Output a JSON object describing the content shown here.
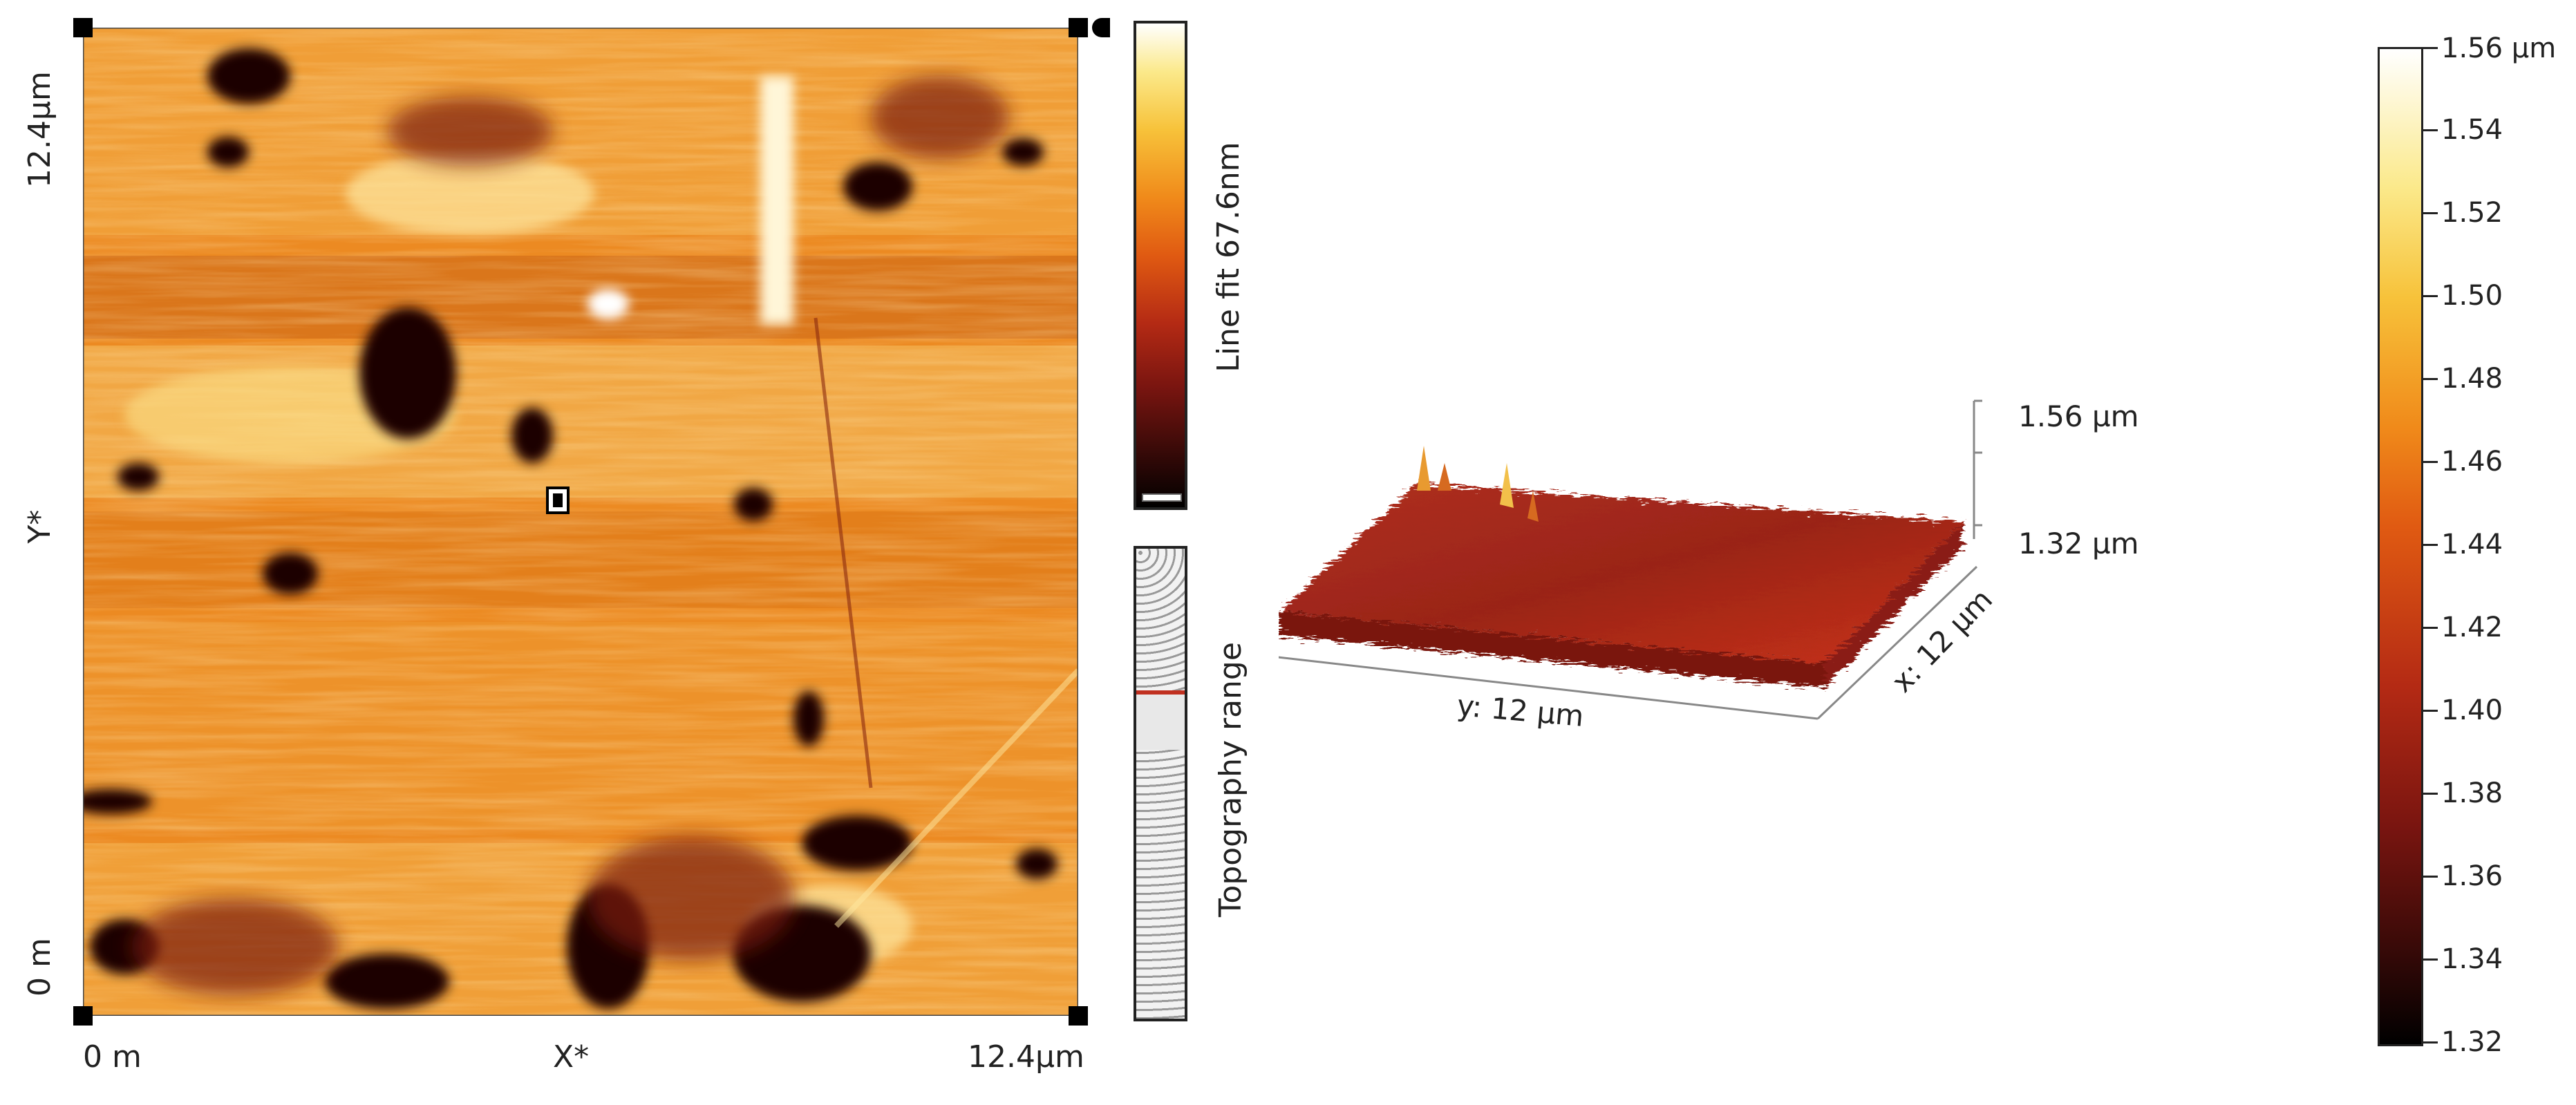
{
  "topo_map": {
    "y_max_label": "12.4µm",
    "y_mid_label": "Y*",
    "y_min_label": "0 m",
    "x_min_label": "0 m",
    "x_mid_label": "X*",
    "x_max_label": "12.4µm"
  },
  "line_fit_bar": {
    "label": "Line fit 67.6nm"
  },
  "topography_range_bar": {
    "label": "Topography range"
  },
  "view3d": {
    "z_top_label": "1.56 µm",
    "z_bottom_label": "1.32 µm",
    "y_axis_label": "y: 12 µm",
    "x_axis_label": "x: 12 µm"
  },
  "colors": {
    "colormap": [
      "#000000",
      "#3a0a08",
      "#7a1510",
      "#b42a14",
      "#e05a12",
      "#f08a1a",
      "#f7c23a",
      "#fbe98a",
      "#ffffff"
    ],
    "surface_3d": "#a8261c"
  },
  "chart_data": {
    "type": "heatmap",
    "title": "",
    "colorbar": {
      "unit": "µm",
      "min": 1.32,
      "max": 1.56,
      "max_label": "1.56 µm",
      "ticks": [
        "1.54",
        "1.52",
        "1.50",
        "1.48",
        "1.46",
        "1.44",
        "1.42",
        "1.40",
        "1.38",
        "1.36",
        "1.34",
        "1.32"
      ]
    }
  }
}
